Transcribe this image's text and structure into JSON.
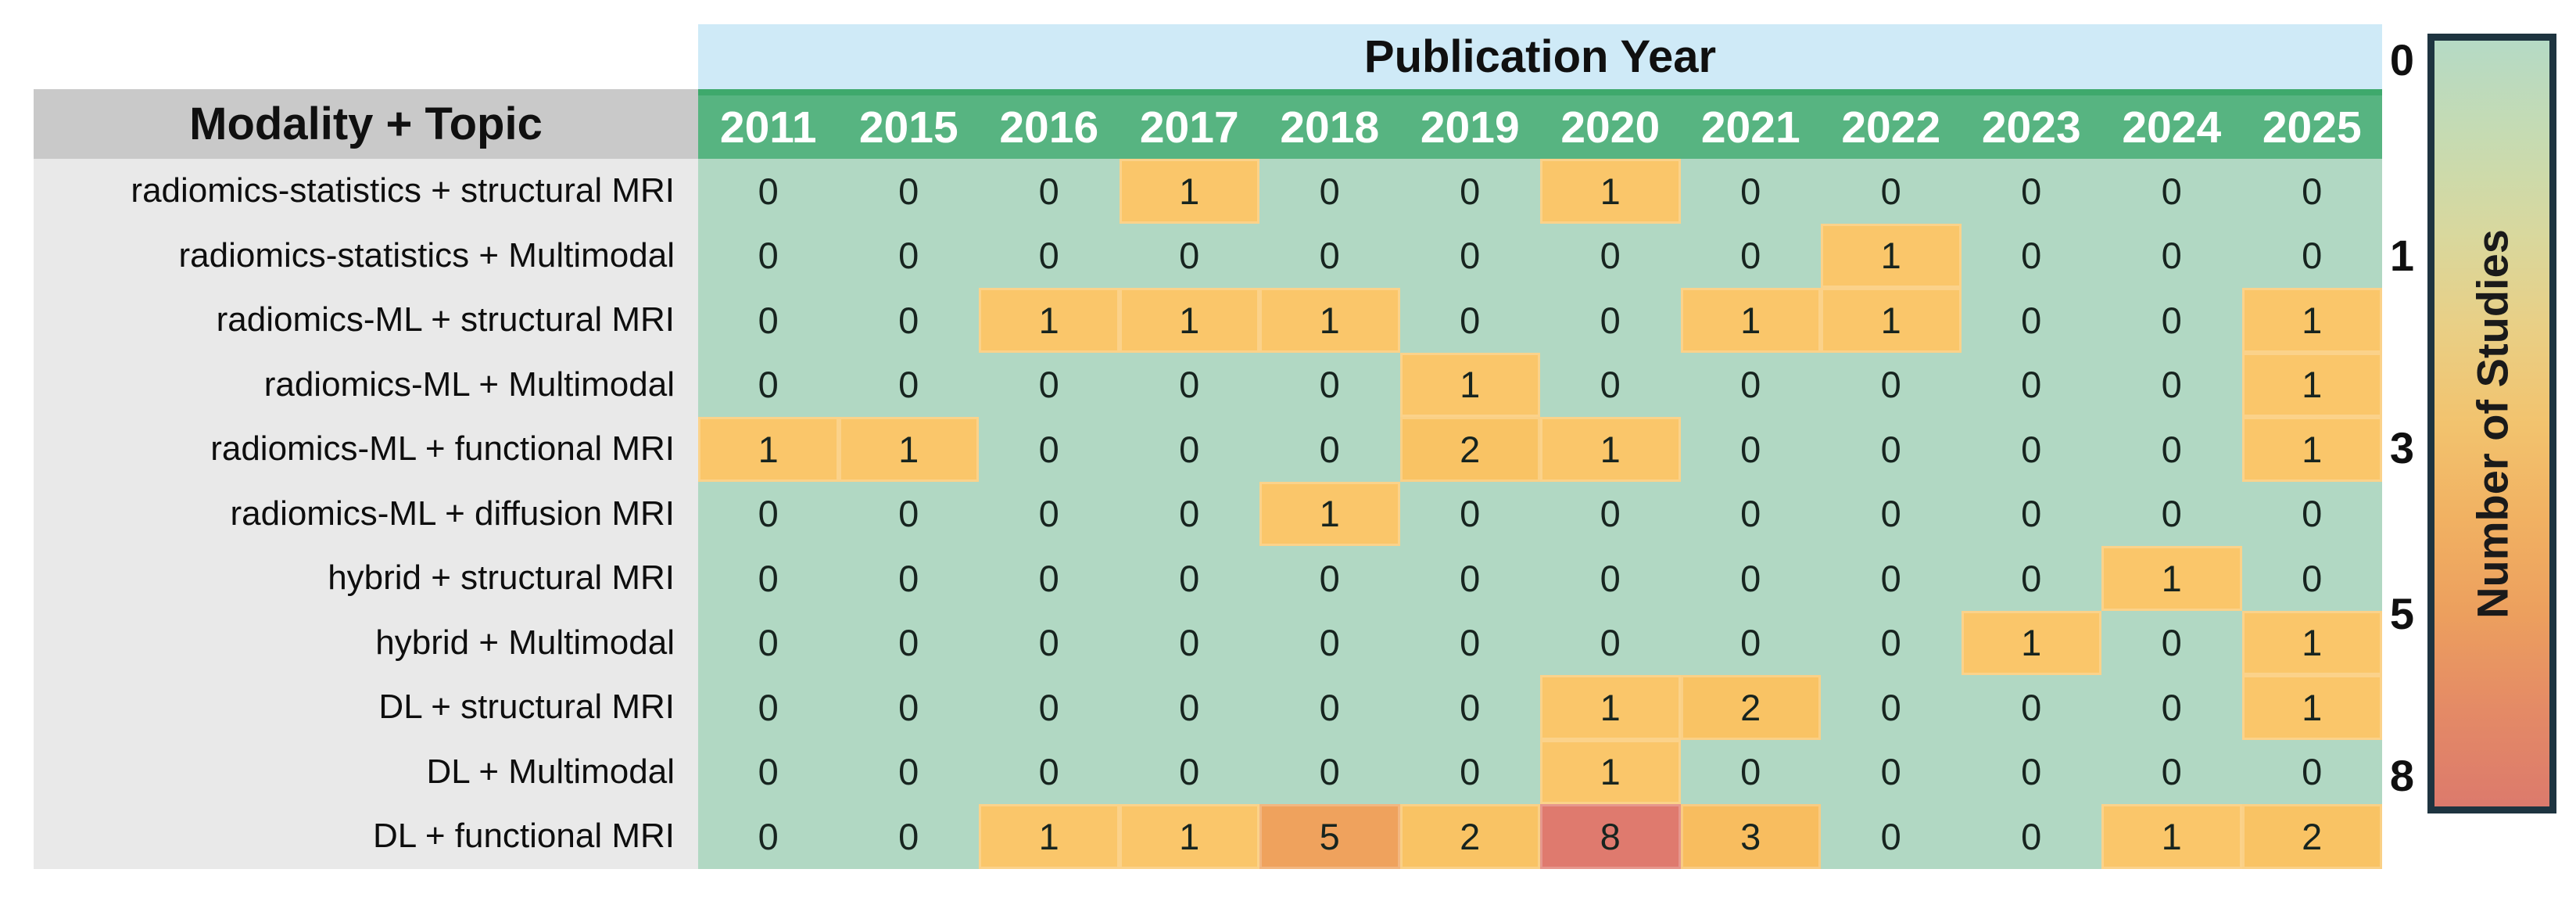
{
  "chart_data": {
    "type": "heatmap",
    "title": "Publication Year",
    "row_header": "Modality + Topic",
    "columns": [
      "2011",
      "2015",
      "2016",
      "2017",
      "2018",
      "2019",
      "2020",
      "2021",
      "2022",
      "2023",
      "2024",
      "2025"
    ],
    "rows": [
      {
        "label": "radiomics-statistics + structural MRI",
        "values": [
          0,
          0,
          0,
          1,
          0,
          0,
          1,
          0,
          0,
          0,
          0,
          0
        ]
      },
      {
        "label": "radiomics-statistics + Multimodal",
        "values": [
          0,
          0,
          0,
          0,
          0,
          0,
          0,
          0,
          1,
          0,
          0,
          0
        ]
      },
      {
        "label": "radiomics-ML + structural MRI",
        "values": [
          0,
          0,
          1,
          1,
          1,
          0,
          0,
          1,
          1,
          0,
          0,
          1
        ]
      },
      {
        "label": "radiomics-ML + Multimodal",
        "values": [
          0,
          0,
          0,
          0,
          0,
          1,
          0,
          0,
          0,
          0,
          0,
          1
        ]
      },
      {
        "label": "radiomics-ML + functional MRI",
        "values": [
          1,
          1,
          0,
          0,
          0,
          2,
          1,
          0,
          0,
          0,
          0,
          1
        ]
      },
      {
        "label": "radiomics-ML + diffusion MRI",
        "values": [
          0,
          0,
          0,
          0,
          1,
          0,
          0,
          0,
          0,
          0,
          0,
          0
        ]
      },
      {
        "label": "hybrid + structural MRI",
        "values": [
          0,
          0,
          0,
          0,
          0,
          0,
          0,
          0,
          0,
          0,
          1,
          0
        ]
      },
      {
        "label": "hybrid + Multimodal",
        "values": [
          0,
          0,
          0,
          0,
          0,
          0,
          0,
          0,
          0,
          1,
          0,
          1
        ]
      },
      {
        "label": "DL + structural MRI",
        "values": [
          0,
          0,
          0,
          0,
          0,
          0,
          1,
          2,
          0,
          0,
          0,
          1
        ]
      },
      {
        "label": "DL + Multimodal",
        "values": [
          0,
          0,
          0,
          0,
          0,
          0,
          1,
          0,
          0,
          0,
          0,
          0
        ]
      },
      {
        "label": "DL + functional MRI",
        "values": [
          0,
          0,
          1,
          1,
          5,
          2,
          8,
          3,
          0,
          0,
          1,
          2
        ]
      }
    ],
    "colorbar": {
      "label": "Number of Studies",
      "min": 0,
      "max": 8,
      "ticks": [
        {
          "label": "0",
          "f": 0.034
        },
        {
          "label": "1",
          "f": 0.285
        },
        {
          "label": "3",
          "f": 0.532
        },
        {
          "label": "5",
          "f": 0.744
        },
        {
          "label": "8",
          "f": 0.952
        }
      ]
    },
    "value_colors": {
      "0": "#b1d8c3",
      "1": "#fac66a",
      "2": "#f9c364",
      "3": "#f8bd5f",
      "5": "#efa25d",
      "8": "#df7a6e"
    },
    "palette": {
      "band_blue": "#cfeaf7",
      "header_green": "#57b481",
      "header_green_dark": "#3ea96c",
      "label_bg": "#e9e9e9",
      "corner_bg": "#c9c9c9",
      "border_navy": "#1e3440",
      "gradient": [
        "#b5dac5",
        "#c6dbb2",
        "#d8d89e",
        "#e9cf85",
        "#f2c36e",
        "#f1b162",
        "#ec9f5e",
        "#e48a66",
        "#dc7a6c"
      ]
    }
  }
}
